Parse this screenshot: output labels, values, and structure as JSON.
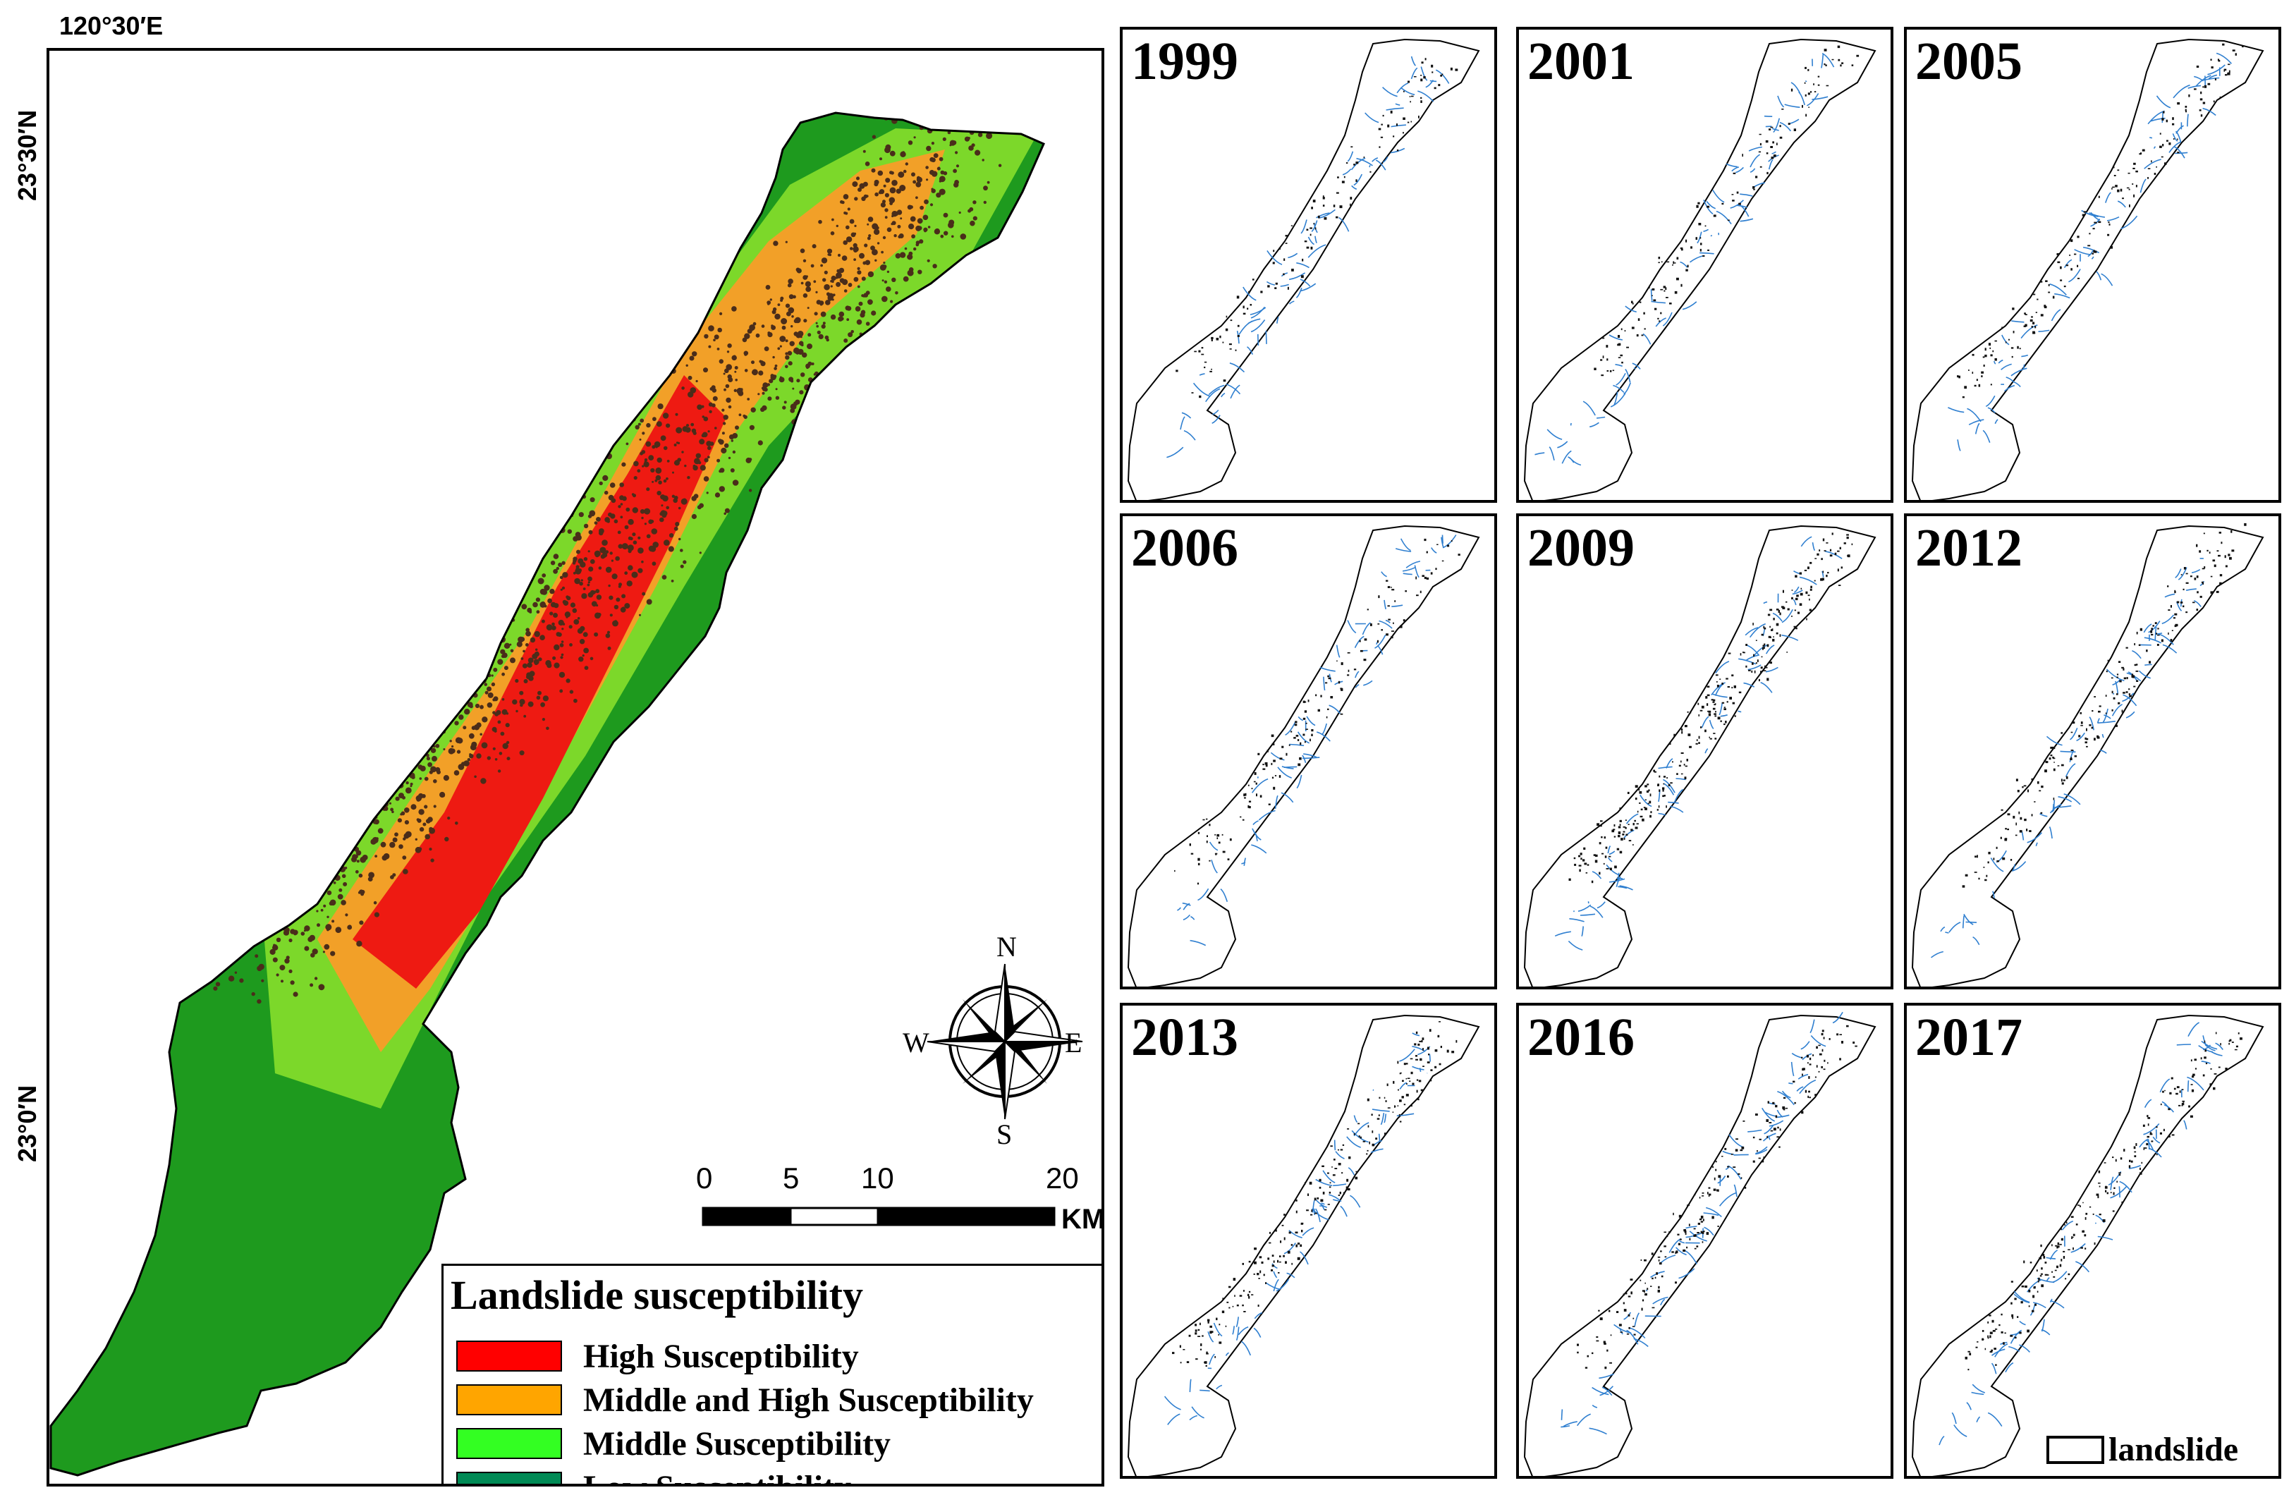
{
  "map": {
    "coordinates": {
      "longitude_top": "120°30′E",
      "latitude_upper": "23°30′N",
      "latitude_lower": "23°0′N"
    },
    "compass": {
      "n": "N",
      "s": "S",
      "e": "E",
      "w": "W"
    },
    "scale_bar": {
      "ticks": [
        "0",
        "5",
        "10",
        "20"
      ],
      "unit": "KM"
    },
    "legend": {
      "title": "Landslide susceptibility",
      "items": [
        {
          "label": "High Susceptibility",
          "color": "#ff0000"
        },
        {
          "label": "Middle and High Susceptibility",
          "color": "#ffa500"
        },
        {
          "label": "Middle Susceptibility",
          "color": "#33ff22"
        },
        {
          "label": "Low Susceptibility",
          "color": "#008a55"
        }
      ]
    },
    "colors": {
      "low_fill": "#1e9a1e",
      "middle_fill": "#7cd82a",
      "middle_high_fill": "#f2a028",
      "high_fill": "#ee1a12",
      "landslide_dots": "#4a2d1a",
      "stream_lines": "#2f7fd0"
    }
  },
  "panels": [
    {
      "year": "1999",
      "density": 0.25
    },
    {
      "year": "2001",
      "density": 0.3
    },
    {
      "year": "2005",
      "density": 0.45
    },
    {
      "year": "2006",
      "density": 0.35
    },
    {
      "year": "2009",
      "density": 1.0
    },
    {
      "year": "2012",
      "density": 0.6
    },
    {
      "year": "2013",
      "density": 0.7
    },
    {
      "year": "2016",
      "density": 0.6
    },
    {
      "year": "2017",
      "density": 0.65
    }
  ],
  "panel_legend": {
    "label": "landslide"
  }
}
